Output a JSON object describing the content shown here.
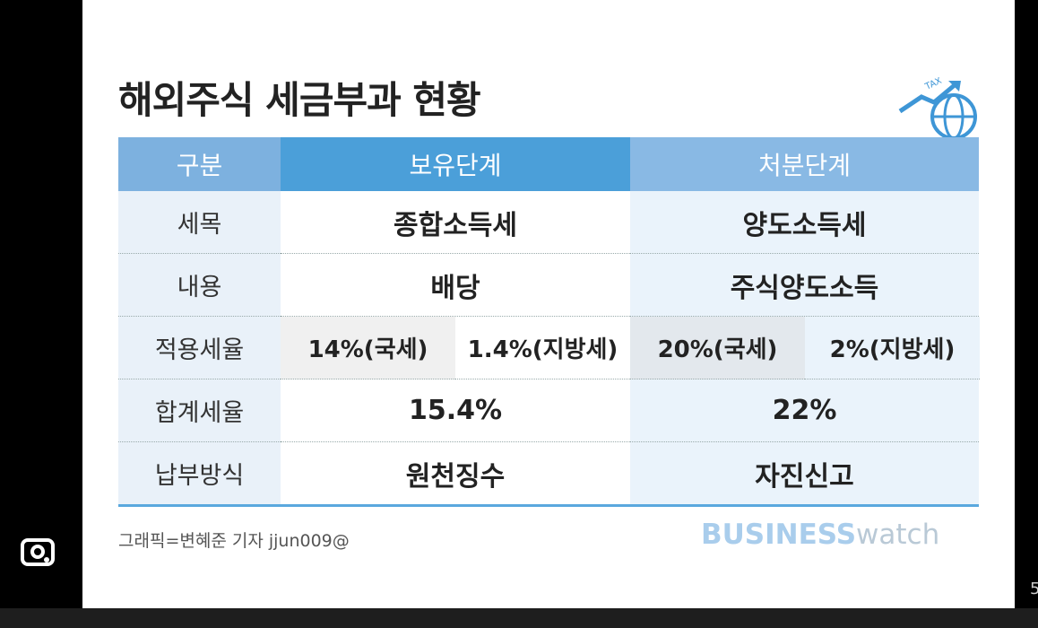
{
  "infographic": {
    "title": "해외주식 세금부과 현황",
    "icon_text": "TAX",
    "table": {
      "header": [
        "구분",
        "보유단계",
        "처분단계"
      ],
      "rows": [
        [
          "세목",
          "종합소득세",
          "양도소득세"
        ],
        [
          "내용",
          "배당",
          "주식양도소득"
        ],
        [
          "적용세율",
          "14%(국세)",
          "1.4%(지방세)",
          "20%(국세)",
          "2%(지방세)"
        ],
        [
          "합계세율",
          "15.4%",
          "22%"
        ],
        [
          "납부방식",
          "원천징수",
          "자진신고"
        ]
      ]
    },
    "credit": "그래픽=변혜준 기자 jjun009@",
    "logo": {
      "bold": "BUSINESS",
      "light": "watch"
    }
  },
  "page_number": "5"
}
